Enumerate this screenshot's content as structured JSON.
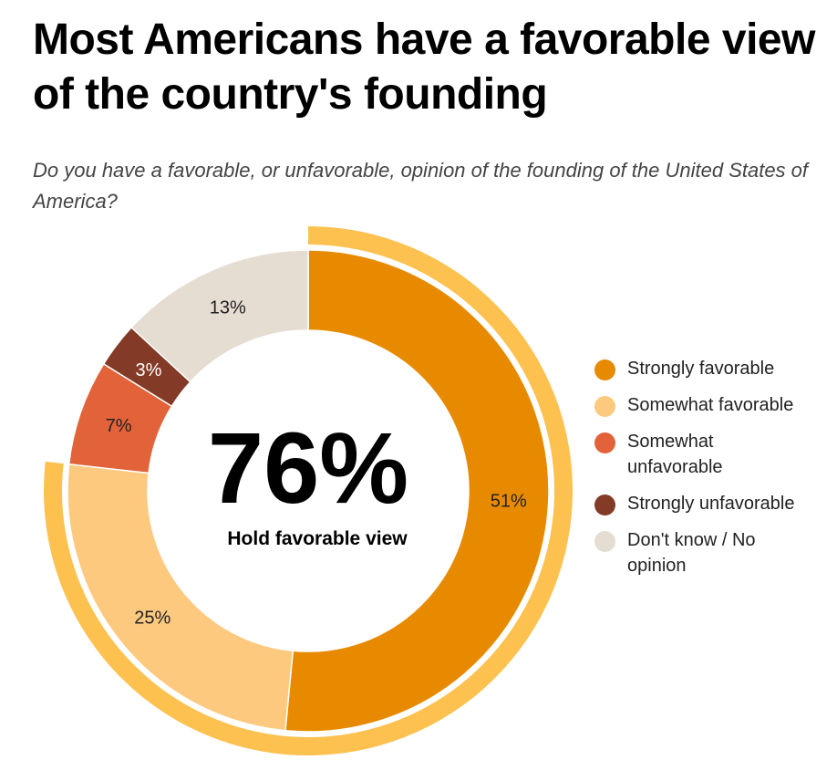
{
  "title": "Most Americans have a favorable view of the country's founding",
  "subtitle": "Do you have a favorable, or unfavorable, opinion of the founding of the United States of America?",
  "center": {
    "value": "76%",
    "caption": "Hold favorable view"
  },
  "colors": {
    "strongly_favorable": "#E88A00",
    "somewhat_favorable": "#FDC97F",
    "somewhat_unfavorable": "#E2633A",
    "strongly_unfavorable": "#833A26",
    "dont_know": "#E5DCD2",
    "favorable_arc": "#FDC150"
  },
  "chart_data": {
    "type": "pie",
    "donut": true,
    "unit": "%",
    "categories": [
      "Strongly favorable",
      "Somewhat favorable",
      "Somewhat unfavorable",
      "Strongly unfavorable",
      "Don't know / No opinion"
    ],
    "values": [
      51,
      25,
      7,
      3,
      13
    ],
    "labels": [
      "51%",
      "25%",
      "7%",
      "3%",
      "13%"
    ],
    "highlight_total": {
      "label": "76%",
      "caption": "Hold favorable view",
      "includes": [
        "Strongly favorable",
        "Somewhat favorable"
      ]
    },
    "legend_position": "right"
  },
  "legend": [
    {
      "label": "Strongly favorable",
      "color": "#E88A00"
    },
    {
      "label": "Somewhat favorable",
      "color": "#FDC97F"
    },
    {
      "label": "Somewhat unfavorable",
      "color": "#E2633A"
    },
    {
      "label": "Strongly unfavorable",
      "color": "#833A26"
    },
    {
      "label": "Don't know / No opinion",
      "color": "#E5DCD2"
    }
  ]
}
